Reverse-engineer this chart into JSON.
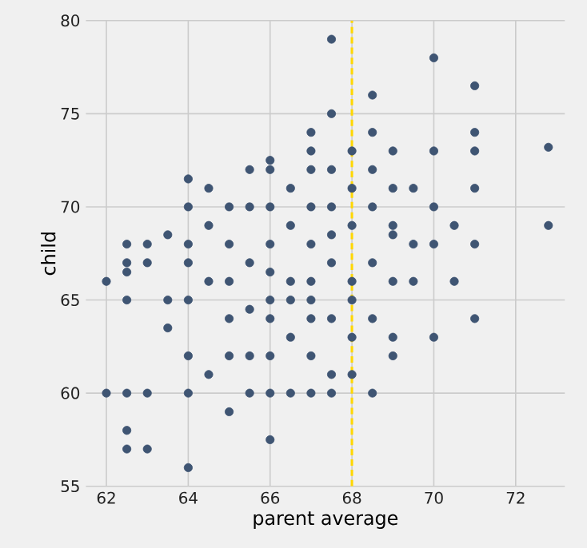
{
  "chart_data": {
    "type": "scatter",
    "xlabel": "parent average",
    "ylabel": "child",
    "xlim": [
      61.5,
      73.2
    ],
    "ylim": [
      55,
      80
    ],
    "xticks": [
      62,
      64,
      66,
      68,
      70,
      72
    ],
    "yticks": [
      55,
      60,
      65,
      70,
      75,
      80
    ],
    "grid": true,
    "marker": "circle",
    "ref_lines": [
      {
        "axis": "x",
        "value": 68,
        "color": "#ffd700",
        "line_style": "dashed"
      }
    ],
    "series": [
      {
        "color": "#3f5573",
        "x": [
          62,
          62,
          62.5,
          62.5,
          62.5,
          63,
          63,
          62.5,
          62.5,
          62.5,
          62.5,
          63,
          63,
          63.5,
          63.5,
          63.5,
          64,
          64,
          64,
          64,
          64,
          64,
          64,
          64.5,
          64.5,
          64.5,
          64.5,
          65,
          65,
          65,
          65,
          65,
          65.5,
          65.5,
          65.5,
          65.5,
          65.5,
          66,
          66,
          66,
          66,
          66,
          66,
          66,
          66,
          66.5,
          66.5,
          66.5,
          66.5,
          66.5,
          67,
          67,
          67,
          67,
          67,
          67,
          67,
          67,
          67,
          67.5,
          67.5,
          67.5,
          67.5,
          67.5,
          67.5,
          67.5,
          67.5,
          68,
          68,
          68,
          68,
          68,
          68,
          68.5,
          68.5,
          68.5,
          68.5,
          68.5,
          68.5,
          68.5,
          69,
          69,
          69,
          69,
          69,
          69,
          69.5,
          69.5,
          69.5,
          70,
          70,
          70,
          70,
          70,
          70.5,
          70.5,
          71,
          71,
          71,
          71,
          71,
          71,
          72.8,
          72.8,
          66,
          65,
          64,
          67,
          68,
          66.5,
          65.5,
          69,
          67.5,
          66
        ],
        "values": [
          66,
          60,
          60,
          58,
          57,
          57,
          60,
          68,
          67,
          66.5,
          65,
          68,
          67,
          68.5,
          65,
          63.5,
          60,
          56,
          71.5,
          70,
          68,
          65,
          62,
          71,
          69,
          66,
          61,
          70,
          68,
          64,
          62,
          59,
          72,
          70,
          67,
          62,
          60,
          72.5,
          72,
          70,
          68,
          65,
          62,
          60,
          57.5,
          71,
          69,
          66,
          63,
          60,
          74,
          73,
          72,
          70,
          68,
          66,
          64,
          62,
          60,
          79,
          75,
          72,
          70,
          67,
          64,
          61,
          60,
          73,
          71,
          69,
          66,
          63,
          61,
          76,
          74,
          72,
          70,
          67,
          64,
          60,
          73,
          71,
          69,
          66,
          63,
          62,
          71,
          68,
          66,
          78,
          73,
          70,
          68,
          63,
          69,
          66,
          76.5,
          74,
          73,
          71,
          68,
          64,
          73.2,
          69,
          64,
          66,
          67,
          65,
          65,
          65,
          64.5,
          68.5,
          68.5,
          66.5
        ]
      }
    ]
  }
}
